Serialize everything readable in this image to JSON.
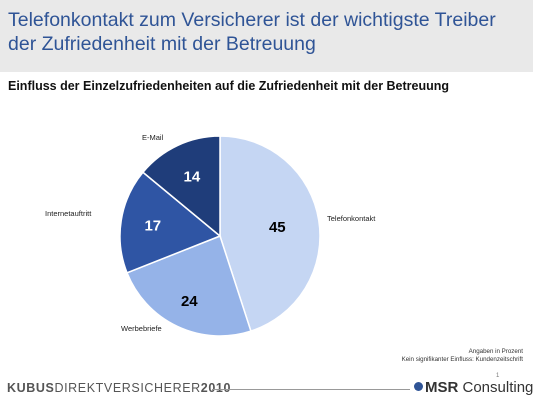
{
  "header": {
    "title": "Telefonkontakt zum Versicherer ist der wichtigste Treiber der Zufriedenheit mit der Betreuung"
  },
  "chart_data": {
    "type": "pie",
    "title": "Einfluss der Einzelzufriedenheiten auf die Zufriedenheit mit der Betreuung",
    "slices": [
      {
        "label": "Telefonkontakt",
        "value": 45,
        "color": "#c5d6f3",
        "text_color": "#000000"
      },
      {
        "label": "Werbebriefe",
        "value": 24,
        "color": "#95b3e8",
        "text_color": "#000000"
      },
      {
        "label": "Internetauftritt",
        "value": 17,
        "color": "#2f55a4",
        "text_color": "#ffffff"
      },
      {
        "label": "E-Mail",
        "value": 14,
        "color": "#1f3d7a",
        "text_color": "#ffffff"
      }
    ]
  },
  "footnotes": {
    "line1": "Angaben in Prozent",
    "line2": "Kein signifikanter Einfluss: Kundenzeitschrift"
  },
  "footer": {
    "brand_bold1": "KUBUS",
    "brand_mid": "DIREKTVERSICHERER",
    "brand_bold2": "2010",
    "page_number": "1",
    "logo_bold": "MSR",
    "logo_rest": " Consulting"
  },
  "colors": {
    "title": "#2f5496",
    "header_bg": "#e9e9e9"
  }
}
